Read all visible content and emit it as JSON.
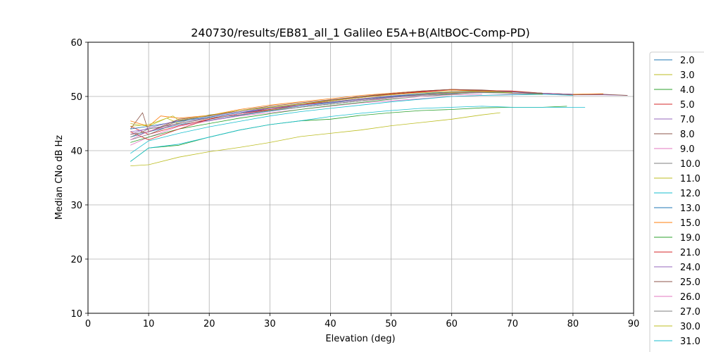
{
  "chart_data": {
    "type": "line",
    "title": "240730/results/EB81_all_1 Galileo E5A+B(AltBOC-Comp-PD)",
    "xlabel": "Elevation (deg)",
    "ylabel": "Median CNo dB Hz",
    "xlim": [
      0,
      90
    ],
    "ylim": [
      10,
      60
    ],
    "xticks": [
      "0",
      "10",
      "20",
      "30",
      "40",
      "50",
      "60",
      "70",
      "80",
      "90"
    ],
    "yticks": [
      "10",
      "20",
      "30",
      "40",
      "50",
      "60"
    ],
    "grid": true,
    "legend_position": "right, outside plot (clipped at bottom)",
    "series": [
      {
        "name": "2.0",
        "color": "#1f77b4",
        "x": [
          7,
          10,
          15,
          20,
          25,
          30,
          35,
          40,
          45,
          50,
          55,
          60,
          65,
          70,
          75,
          80
        ],
        "y": [
          42.5,
          43.5,
          44.8,
          45.6,
          46.5,
          47.3,
          48.0,
          48.6,
          49.2,
          49.8,
          50.3,
          50.7,
          51.0,
          50.9,
          50.6,
          50.4
        ]
      },
      {
        "name": "3.0",
        "color": "#bcbd22",
        "x": [
          7,
          10,
          15,
          20,
          25,
          30,
          35,
          40,
          45,
          50,
          55,
          60,
          65,
          68
        ],
        "y": [
          37.2,
          37.4,
          38.8,
          39.8,
          40.6,
          41.5,
          42.6,
          43.2,
          43.8,
          44.6,
          45.2,
          45.8,
          46.6,
          47.0
        ]
      },
      {
        "name": "4.0",
        "color": "#2ca02c",
        "x": [
          7,
          10,
          15,
          20,
          25,
          30,
          35,
          40,
          45,
          50,
          55,
          60,
          65,
          70,
          75,
          79
        ],
        "y": [
          38.0,
          40.5,
          41.0,
          42.5,
          43.8,
          44.8,
          45.5,
          45.8,
          46.5,
          47.0,
          47.4,
          47.6,
          47.9,
          48.0,
          48.0,
          48.2
        ]
      },
      {
        "name": "5.0",
        "color": "#d62728",
        "x": [
          7,
          10,
          15,
          20,
          25,
          30,
          35,
          40,
          45,
          50,
          55,
          60,
          65,
          70,
          75,
          80,
          85
        ],
        "y": [
          44.5,
          43.0,
          44.6,
          45.8,
          46.8,
          47.8,
          48.5,
          49.2,
          49.8,
          50.4,
          50.8,
          51.2,
          51.0,
          51.0,
          50.6,
          50.3,
          50.4
        ]
      },
      {
        "name": "7.0",
        "color": "#9467bd",
        "x": [
          7,
          10,
          15,
          20,
          25,
          30,
          35,
          40,
          45,
          50,
          55,
          60,
          65,
          70,
          75,
          80,
          85,
          89
        ],
        "y": [
          43.5,
          44.0,
          45.0,
          46.2,
          47.0,
          47.8,
          48.4,
          49.0,
          49.6,
          50.1,
          50.5,
          50.8,
          50.9,
          50.8,
          50.5,
          50.3,
          50.3,
          50.2
        ]
      },
      {
        "name": "8.0",
        "color": "#8c564b",
        "x": [
          7,
          9,
          10,
          15,
          20,
          25,
          30,
          35,
          40,
          45,
          50,
          55,
          60,
          65,
          70,
          75,
          80,
          85,
          89
        ],
        "y": [
          44.0,
          47.0,
          43.5,
          45.5,
          46.5,
          47.4,
          48.2,
          48.8,
          49.4,
          50.0,
          50.6,
          51.0,
          51.3,
          51.2,
          50.9,
          50.6,
          50.3,
          50.4,
          50.2
        ]
      },
      {
        "name": "9.0",
        "color": "#e377c2",
        "x": [
          7,
          10,
          15,
          20,
          25,
          30,
          35,
          40,
          45,
          50,
          55,
          60,
          65,
          70,
          75
        ],
        "y": [
          41.0,
          42.5,
          44.5,
          45.5,
          46.4,
          47.0,
          47.6,
          48.2,
          48.8,
          49.2,
          49.6,
          50.0,
          50.2,
          50.4,
          50.4
        ]
      },
      {
        "name": "10.0",
        "color": "#7f7f7f",
        "x": [
          7,
          10,
          15,
          20,
          25,
          30,
          35,
          40,
          45,
          50,
          55,
          60,
          65,
          70,
          75,
          80
        ],
        "y": [
          42.0,
          43.0,
          45.2,
          46.6,
          47.2,
          47.9,
          48.5,
          49.0,
          49.5,
          50.0,
          50.4,
          50.7,
          50.9,
          50.8,
          50.6,
          50.4
        ]
      },
      {
        "name": "11.0",
        "color": "#bcbd22",
        "x": [
          7,
          10,
          13,
          15,
          20,
          25,
          30,
          35,
          40,
          45,
          50,
          55,
          60,
          65
        ],
        "y": [
          45.0,
          44.5,
          46.0,
          45.0,
          46.0,
          46.8,
          47.5,
          48.0,
          48.6,
          49.2,
          49.8,
          50.4,
          50.7,
          50.8
        ]
      },
      {
        "name": "12.0",
        "color": "#17becf",
        "x": [
          7,
          10,
          15,
          20,
          25,
          30,
          35,
          40,
          45,
          50,
          55,
          60,
          65,
          70,
          75,
          80
        ],
        "y": [
          39.5,
          41.8,
          43.2,
          44.4,
          45.4,
          46.4,
          47.2,
          47.8,
          48.4,
          49.0,
          49.5,
          50.0,
          50.2,
          50.3,
          50.4,
          50.2
        ]
      },
      {
        "name": "13.0",
        "color": "#1f77b4",
        "x": [
          7,
          10,
          15,
          20,
          25,
          30,
          35,
          40,
          45,
          50,
          55,
          60,
          65,
          70
        ],
        "y": [
          44.0,
          44.5,
          45.4,
          46.2,
          47.0,
          47.6,
          48.2,
          48.8,
          49.4,
          50.0,
          50.5,
          50.9,
          51.0,
          50.8
        ]
      },
      {
        "name": "15.0",
        "color": "#ff7f0e",
        "x": [
          7,
          10,
          12,
          15,
          20,
          25,
          30,
          35,
          40,
          45,
          50,
          55,
          60,
          65,
          70,
          75,
          80,
          85
        ],
        "y": [
          45.5,
          44.5,
          46.4,
          46.0,
          46.5,
          47.6,
          48.4,
          49.0,
          49.6,
          50.2,
          50.6,
          51.0,
          51.2,
          51.0,
          50.9,
          50.6,
          50.4,
          50.5
        ]
      },
      {
        "name": "19.0",
        "color": "#2ca02c",
        "x": [
          7,
          10,
          15,
          20,
          25,
          30,
          35,
          40,
          45,
          50,
          55,
          60,
          65,
          70,
          75
        ],
        "y": [
          41.5,
          42.5,
          44.0,
          45.0,
          46.0,
          46.8,
          47.6,
          48.3,
          48.9,
          49.5,
          50.0,
          50.4,
          50.8,
          50.6,
          50.4
        ]
      },
      {
        "name": "21.0",
        "color": "#d62728",
        "x": [
          7,
          10,
          15,
          20,
          25,
          30,
          35,
          40,
          45,
          50,
          55,
          60,
          65,
          70
        ],
        "y": [
          43.5,
          42.0,
          44.0,
          45.8,
          46.8,
          47.6,
          48.4,
          49.2,
          49.8,
          50.4,
          50.9,
          51.3,
          51.1,
          51.0
        ]
      },
      {
        "name": "24.0",
        "color": "#9467bd",
        "x": [
          7,
          10,
          15,
          20,
          25,
          30,
          35,
          40,
          45,
          50,
          55,
          60,
          65,
          70,
          75,
          80
        ],
        "y": [
          43.0,
          44.2,
          45.6,
          46.4,
          47.2,
          47.8,
          48.4,
          48.9,
          49.4,
          49.9,
          50.3,
          50.6,
          50.8,
          50.8,
          50.6,
          50.4
        ]
      },
      {
        "name": "25.0",
        "color": "#8c564b",
        "x": [
          7,
          10,
          15,
          20,
          25,
          30,
          35,
          40,
          45,
          50,
          55,
          60,
          65,
          70,
          75
        ],
        "y": [
          43.0,
          43.5,
          45.8,
          46.4,
          47.4,
          48.0,
          48.6,
          49.3,
          49.9,
          50.5,
          51.0,
          51.3,
          51.1,
          50.9,
          50.6
        ]
      },
      {
        "name": "26.0",
        "color": "#e377c2",
        "x": [
          7,
          10,
          15,
          20,
          25,
          30,
          35,
          40,
          45,
          50,
          55,
          60,
          65
        ],
        "y": [
          42.0,
          43.6,
          45.0,
          46.0,
          46.8,
          47.4,
          48.0,
          48.6,
          49.2,
          49.6,
          50.0,
          50.3,
          50.4
        ]
      },
      {
        "name": "27.0",
        "color": "#7f7f7f",
        "x": [
          7,
          10,
          15,
          20,
          25,
          30,
          35,
          40,
          45,
          50,
          55,
          60,
          65,
          70,
          75
        ],
        "y": [
          42.5,
          44.0,
          45.0,
          46.0,
          46.6,
          47.4,
          48.0,
          48.6,
          49.2,
          49.8,
          50.2,
          50.5,
          50.7,
          50.6,
          50.5
        ]
      },
      {
        "name": "30.0",
        "color": "#bcbd22",
        "x": [
          7,
          10,
          14,
          15,
          20,
          25,
          30,
          35,
          40,
          45,
          50,
          55,
          60,
          65,
          70
        ],
        "y": [
          44.5,
          44.8,
          46.4,
          45.6,
          46.5,
          47.4,
          48.0,
          48.6,
          49.2,
          49.8,
          50.3,
          50.7,
          50.9,
          50.9,
          50.7
        ]
      },
      {
        "name": "31.0",
        "color": "#17becf",
        "x": [
          7,
          10,
          15,
          20,
          25,
          30,
          35,
          40,
          45,
          50,
          55,
          60,
          65,
          70,
          75,
          80,
          82
        ],
        "y": [
          38.0,
          40.5,
          41.2,
          42.5,
          43.8,
          44.8,
          45.5,
          46.3,
          46.9,
          47.4,
          47.8,
          48.0,
          48.2,
          48.0,
          48.0,
          48.0,
          48.0
        ]
      }
    ]
  }
}
